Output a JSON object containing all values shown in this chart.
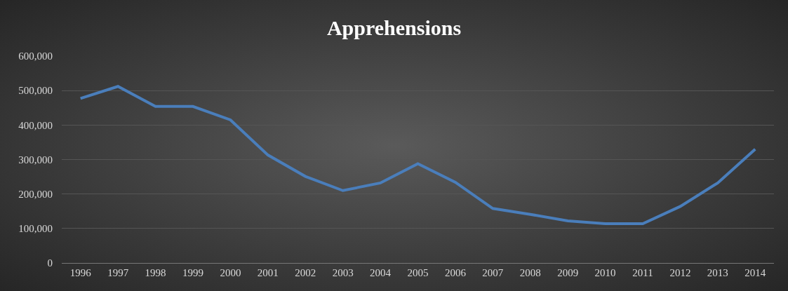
{
  "chart_data": {
    "type": "line",
    "title": "Apprehensions",
    "categories": [
      "1996",
      "1997",
      "1998",
      "1999",
      "2000",
      "2001",
      "2002",
      "2003",
      "2004",
      "2005",
      "2006",
      "2007",
      "2008",
      "2009",
      "2010",
      "2011",
      "2012",
      "2013",
      "2014"
    ],
    "series": [
      {
        "color": "#4a7ebb",
        "values": [
          477000,
          512000,
          454000,
          454000,
          415000,
          313000,
          251000,
          210000,
          232000,
          288000,
          234000,
          158000,
          141000,
          122000,
          114000,
          114000,
          164000,
          232000,
          330000
        ]
      }
    ],
    "ylim": [
      0,
      600000
    ],
    "yticks": [
      {
        "value": 0,
        "label": "0"
      },
      {
        "value": 100000,
        "label": "100,000"
      },
      {
        "value": 200000,
        "label": "200,000"
      },
      {
        "value": 300000,
        "label": "300,000"
      },
      {
        "value": 400000,
        "label": "400,000"
      },
      {
        "value": 500000,
        "label": "500,000"
      },
      {
        "value": 600000,
        "label": "600,000"
      }
    ],
    "grid": "y",
    "marker": "none",
    "line_style": "solid"
  }
}
